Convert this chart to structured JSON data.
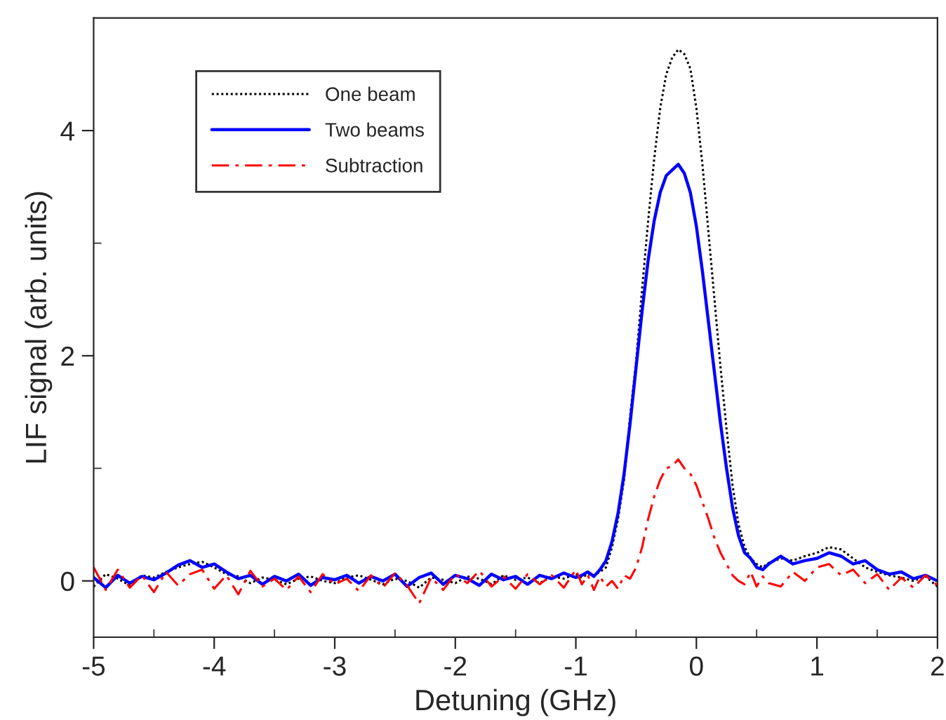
{
  "chart_data": {
    "type": "line",
    "xlabel": "Detuning (GHz)",
    "ylabel": "LIF signal (arb. units)",
    "x": [
      -5.0,
      -4.9,
      -4.8,
      -4.7,
      -4.6,
      -4.5,
      -4.4,
      -4.3,
      -4.2,
      -4.1,
      -4.0,
      -3.9,
      -3.8,
      -3.7,
      -3.6,
      -3.5,
      -3.4,
      -3.3,
      -3.2,
      -3.1,
      -3.0,
      -2.9,
      -2.8,
      -2.7,
      -2.6,
      -2.5,
      -2.4,
      -2.3,
      -2.2,
      -2.1,
      -2.0,
      -1.9,
      -1.8,
      -1.7,
      -1.6,
      -1.5,
      -1.4,
      -1.3,
      -1.2,
      -1.1,
      -1.0,
      -0.95,
      -0.9,
      -0.85,
      -0.8,
      -0.75,
      -0.7,
      -0.65,
      -0.6,
      -0.55,
      -0.5,
      -0.45,
      -0.4,
      -0.35,
      -0.3,
      -0.25,
      -0.2,
      -0.15,
      -0.1,
      -0.05,
      0.0,
      0.05,
      0.1,
      0.15,
      0.2,
      0.25,
      0.3,
      0.35,
      0.4,
      0.45,
      0.5,
      0.55,
      0.6,
      0.7,
      0.8,
      0.9,
      1.0,
      1.1,
      1.2,
      1.3,
      1.4,
      1.5,
      1.6,
      1.7,
      1.8,
      1.9,
      2.0
    ],
    "series": [
      {
        "name": "One beam",
        "color": "#000000",
        "line_style": "dotted",
        "values": [
          -0.05,
          0.06,
          0.02,
          -0.04,
          0.05,
          0.03,
          0.08,
          0.12,
          0.15,
          0.17,
          0.12,
          0.06,
          0.04,
          -0.02,
          0.03,
          0.01,
          -0.03,
          0.02,
          0.04,
          0.0,
          -0.02,
          0.03,
          0.05,
          0.01,
          -0.03,
          0.02,
          0.0,
          -0.06,
          0.03,
          0.01,
          -0.02,
          0.04,
          0.02,
          -0.03,
          0.05,
          0.01,
          0.03,
          -0.02,
          0.04,
          0.02,
          0.06,
          0.03,
          0.06,
          0.05,
          0.08,
          0.12,
          0.3,
          0.55,
          0.9,
          1.46,
          1.95,
          2.6,
          3.2,
          3.75,
          4.2,
          4.5,
          4.65,
          4.72,
          4.68,
          4.55,
          4.2,
          3.7,
          3.1,
          2.5,
          1.9,
          1.35,
          0.85,
          0.5,
          0.3,
          0.2,
          0.15,
          0.12,
          0.16,
          0.2,
          0.18,
          0.22,
          0.25,
          0.3,
          0.28,
          0.2,
          0.12,
          0.08,
          0.05,
          0.03,
          0.0,
          0.04,
          -0.05
        ]
      },
      {
        "name": "Two beams",
        "color": "#0000ff",
        "line_style": "solid",
        "values": [
          0.03,
          -0.06,
          0.05,
          -0.02,
          0.04,
          0.01,
          0.07,
          0.14,
          0.18,
          0.12,
          0.15,
          0.08,
          0.02,
          0.05,
          -0.03,
          0.04,
          0.0,
          0.06,
          -0.04,
          0.03,
          0.01,
          0.05,
          -0.02,
          0.04,
          0.0,
          0.06,
          -0.05,
          0.03,
          0.07,
          -0.03,
          0.05,
          0.02,
          -0.04,
          0.06,
          0.01,
          0.04,
          -0.03,
          0.05,
          0.02,
          0.07,
          0.03,
          0.05,
          0.08,
          0.04,
          0.1,
          0.18,
          0.35,
          0.6,
          0.95,
          1.4,
          1.9,
          2.4,
          2.85,
          3.2,
          3.45,
          3.6,
          3.65,
          3.7,
          3.62,
          3.45,
          3.15,
          2.75,
          2.3,
          1.85,
          1.4,
          1.0,
          0.65,
          0.4,
          0.25,
          0.2,
          0.12,
          0.1,
          0.15,
          0.22,
          0.15,
          0.18,
          0.2,
          0.25,
          0.22,
          0.15,
          0.18,
          0.1,
          0.06,
          0.08,
          0.02,
          0.05,
          0.0
        ]
      },
      {
        "name": "Subtraction",
        "color": "#ff0000",
        "line_style": "dashed",
        "values": [
          0.12,
          -0.08,
          0.1,
          -0.06,
          0.05,
          -0.1,
          0.08,
          -0.04,
          0.06,
          0.1,
          -0.07,
          0.05,
          -0.12,
          0.09,
          -0.05,
          0.02,
          -0.08,
          0.04,
          -0.1,
          0.06,
          -0.03,
          0.02,
          -0.09,
          0.05,
          -0.06,
          0.07,
          -0.04,
          -0.2,
          0.03,
          -0.08,
          0.06,
          -0.02,
          0.09,
          -0.05,
          0.04,
          -0.07,
          0.06,
          -0.03,
          0.05,
          -0.06,
          0.1,
          -0.03,
          0.05,
          -0.08,
          0.04,
          -0.05,
          0.0,
          -0.07,
          0.05,
          0.02,
          0.12,
          0.3,
          0.55,
          0.75,
          0.9,
          1.0,
          1.02,
          1.08,
          1.0,
          0.95,
          0.85,
          0.7,
          0.55,
          0.38,
          0.25,
          0.15,
          0.05,
          0.0,
          -0.03,
          0.08,
          -0.05,
          0.04,
          -0.02,
          -0.05,
          0.08,
          0.0,
          0.12,
          0.15,
          0.05,
          0.1,
          -0.02,
          0.06,
          -0.08,
          0.03,
          -0.06,
          0.05,
          -0.04
        ]
      }
    ],
    "xlim": [
      -5,
      2
    ],
    "xticks": [
      -5,
      -4,
      -3,
      -2,
      -1,
      0,
      1,
      2
    ],
    "ylim": [
      -0.5,
      5
    ],
    "yticks": [
      0,
      2,
      4
    ],
    "grid": false,
    "legend": "top left",
    "marker": "none"
  }
}
